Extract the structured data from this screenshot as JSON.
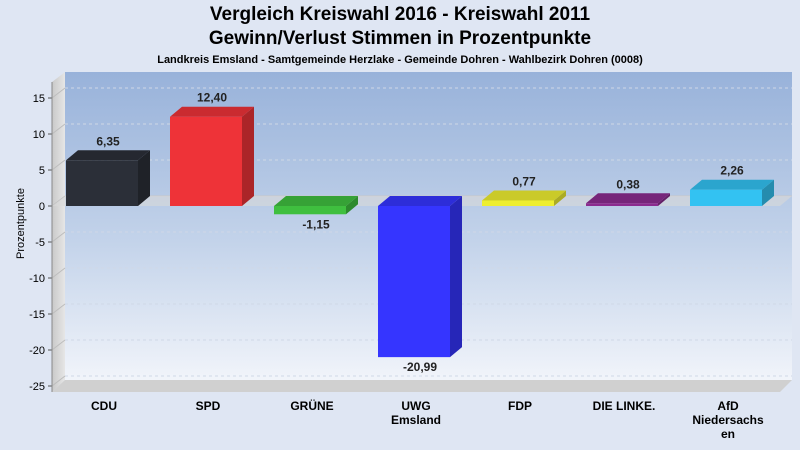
{
  "chart_data": {
    "type": "bar",
    "title": "Vergleich Kreiswahl 2016 - Kreiswahl 2011",
    "title2": "Gewinn/Verlust Stimmen in Prozentpunkte",
    "subtitle": "Landkreis Emsland - Samtgemeinde Herzlake - Gemeinde Dohren - Wahlbezirk Dohren (0008)",
    "ylabel": "Prozentpunkte",
    "xlabel": "",
    "ylim": [
      -25,
      17
    ],
    "yticks": [
      15,
      10,
      5,
      0,
      -5,
      -10,
      -15,
      -20,
      -25
    ],
    "grid": true,
    "categories": [
      "CDU",
      "SPD",
      "GRÜNE",
      "UWG Emsland",
      "FDP",
      "DIE LINKE.",
      "AfD Niedersachsen"
    ],
    "category_lines": [
      [
        "CDU"
      ],
      [
        "SPD"
      ],
      [
        "GRÜNE"
      ],
      [
        "UWG",
        "Emsland"
      ],
      [
        "FDP"
      ],
      [
        "DIE LINKE."
      ],
      [
        "AfD",
        "Niedersachs",
        "en"
      ]
    ],
    "values": [
      6.35,
      12.4,
      -1.15,
      -20.99,
      0.77,
      0.38,
      2.26
    ],
    "value_labels": [
      "6,35",
      "12,40",
      "-1,15",
      "-20,99",
      "0,77",
      "0,38",
      "2,26"
    ],
    "colors": [
      "#2b2f38",
      "#ee3338",
      "#3fbf3f",
      "#3535ff",
      "#eeee30",
      "#8b2b8f",
      "#33c2f2"
    ]
  }
}
